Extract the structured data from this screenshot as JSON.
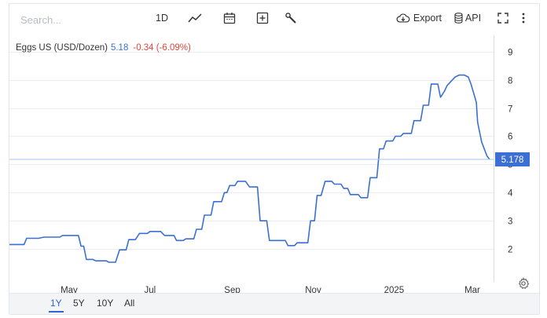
{
  "toolbar": {
    "search_placeholder": "Search...",
    "interval_label": "1D",
    "export_label": "Export",
    "api_label": "API",
    "icons": [
      "line-chart-icon",
      "calendar-icon",
      "add-icon",
      "wrench-icon",
      "cloud-download-icon",
      "database-icon",
      "fullscreen-icon",
      "more-vert-icon"
    ]
  },
  "legend": {
    "name": "Eggs US (USD/Dozen)",
    "value": "5.18",
    "change": "-0.34 (-6.09%)"
  },
  "ranges": {
    "items": [
      "1Y",
      "5Y",
      "10Y",
      "All"
    ],
    "active": "1Y"
  },
  "colors": {
    "line": "#3b6fd3",
    "negative": "#e0463a",
    "grid": "#e9ecf0",
    "last_price_bg": "#3b6fd3"
  },
  "chart_data": {
    "type": "line",
    "title": "Eggs US (USD/Dozen)",
    "xlabel": "",
    "ylabel": "",
    "x_ticks": [
      "May",
      "Jul",
      "Sep",
      "Nov",
      "2025",
      "Mar"
    ],
    "y_ticks": [
      2,
      3,
      4,
      5,
      6,
      7,
      8,
      9
    ],
    "ylim": [
      1.0,
      9.3
    ],
    "xlim": [
      "2024-03-17",
      "2025-03-17"
    ],
    "grid": true,
    "last_value_label": "5.178",
    "last_value": 5.178,
    "series": [
      {
        "name": "Eggs US (USD/Dozen)",
        "x": [
          "2024-03-17",
          "2024-03-28",
          "2024-03-30",
          "2024-04-08",
          "2024-04-12",
          "2024-04-24",
          "2024-04-26",
          "2024-05-08",
          "2024-05-10",
          "2024-05-12",
          "2024-05-14",
          "2024-05-19",
          "2024-05-21",
          "2024-05-29",
          "2024-05-31",
          "2024-06-05",
          "2024-06-08",
          "2024-06-13",
          "2024-06-15",
          "2024-06-20",
          "2024-06-23",
          "2024-06-29",
          "2024-07-01",
          "2024-07-09",
          "2024-07-12",
          "2024-07-19",
          "2024-07-21",
          "2024-07-26",
          "2024-07-28",
          "2024-08-03",
          "2024-08-05",
          "2024-08-09",
          "2024-08-11",
          "2024-08-16",
          "2024-08-18",
          "2024-08-24",
          "2024-08-26",
          "2024-08-28",
          "2024-08-30",
          "2024-09-03",
          "2024-09-05",
          "2024-09-11",
          "2024-09-14",
          "2024-09-20",
          "2024-09-22",
          "2024-09-27",
          "2024-09-29",
          "2024-10-11",
          "2024-10-13",
          "2024-10-18",
          "2024-10-20",
          "2024-10-28",
          "2024-10-30",
          "2024-11-02",
          "2024-11-04",
          "2024-11-07",
          "2024-11-10",
          "2024-11-15",
          "2024-11-17",
          "2024-11-22",
          "2024-11-24",
          "2024-11-27",
          "2024-11-29",
          "2024-12-05",
          "2024-12-07",
          "2024-12-12",
          "2024-12-14",
          "2024-12-19",
          "2024-12-21",
          "2024-12-24",
          "2024-12-26",
          "2024-12-31",
          "2025-01-02",
          "2025-01-06",
          "2025-01-08",
          "2025-01-14",
          "2025-01-16",
          "2025-01-21",
          "2025-01-23",
          "2025-01-27",
          "2025-01-29",
          "2025-02-03",
          "2025-02-05",
          "2025-02-08",
          "2025-02-10",
          "2025-02-14",
          "2025-02-16",
          "2025-02-19",
          "2025-02-23",
          "2025-02-26",
          "2025-02-28",
          "2025-03-04",
          "2025-03-05",
          "2025-03-08",
          "2025-03-12",
          "2025-03-14"
        ],
        "values": [
          2.16,
          2.16,
          2.38,
          2.38,
          2.42,
          2.42,
          2.48,
          2.48,
          2.1,
          2.1,
          1.63,
          1.63,
          1.58,
          1.58,
          1.53,
          1.53,
          1.97,
          1.97,
          2.33,
          2.33,
          2.55,
          2.55,
          2.62,
          2.62,
          2.48,
          2.48,
          2.3,
          2.3,
          2.36,
          2.36,
          2.7,
          2.7,
          3.2,
          3.2,
          3.68,
          3.68,
          4.0,
          4.0,
          4.25,
          4.25,
          4.4,
          4.4,
          4.2,
          4.2,
          3.0,
          3.0,
          2.3,
          2.3,
          2.12,
          2.12,
          2.22,
          2.22,
          3.0,
          3.0,
          3.9,
          3.9,
          4.4,
          4.4,
          4.3,
          4.3,
          4.15,
          4.15,
          3.93,
          3.93,
          3.82,
          3.82,
          4.53,
          4.53,
          5.55,
          5.55,
          5.83,
          5.83,
          6.0,
          6.0,
          6.1,
          6.1,
          6.55,
          6.55,
          7.1,
          7.1,
          7.85,
          7.85,
          7.38,
          7.6,
          7.8,
          8.0,
          8.1,
          8.17,
          8.17,
          8.1,
          7.85,
          7.2,
          6.5,
          5.8,
          5.3,
          5.18
        ]
      }
    ]
  }
}
